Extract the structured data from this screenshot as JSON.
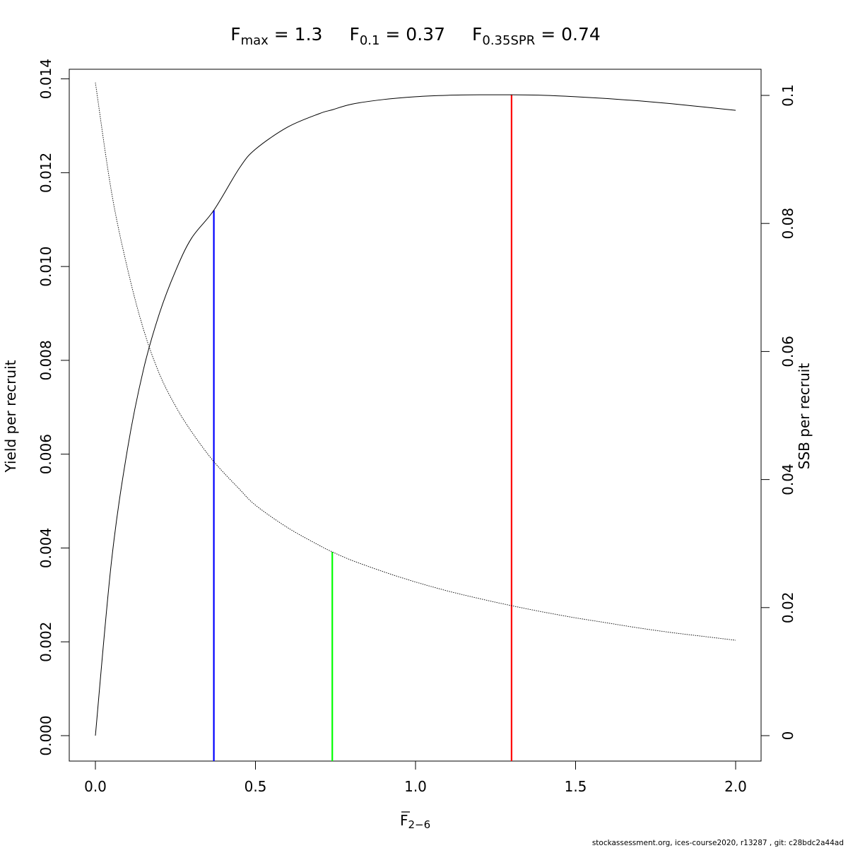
{
  "title": {
    "fmax_sym": "F",
    "fmax_sub": "max",
    "fmax_val": " = 1.3",
    "f01_sym": "F",
    "f01_sub": "0.1",
    "f01_val": " = 0.37",
    "fspr_sym": "F",
    "fspr_sub": "0.35SPR",
    "fspr_val": " = 0.74"
  },
  "xlabel": {
    "main": "F",
    "sub": "2−6"
  },
  "ylabel_left": "Yield per recruit",
  "ylabel_right": "SSB per recruit",
  "footer": "stockassessment.org, ices-course2020, r13287 , git: c28bdc2a44ad",
  "x_ticks": [
    "0.0",
    "0.5",
    "1.0",
    "1.5",
    "2.0"
  ],
  "y_left_ticks": [
    "0.000",
    "0.002",
    "0.004",
    "0.006",
    "0.008",
    "0.010",
    "0.012",
    "0.014"
  ],
  "y_right_ticks": [
    "0",
    "0.02",
    "0.04",
    "0.06",
    "0.08",
    "0.1"
  ],
  "colors": {
    "fmax": "#ff0000",
    "f01": "#0000ff",
    "fspr": "#00ff00",
    "curve": "#000000"
  },
  "chart_data": {
    "type": "line",
    "xlim": [
      0,
      2
    ],
    "ylim_left": [
      0,
      0.014
    ],
    "ylim_right": [
      0,
      0.1
    ],
    "grid": false,
    "x": [
      0.0,
      0.05,
      0.1,
      0.15,
      0.2,
      0.25,
      0.3,
      0.37,
      0.45,
      0.5,
      0.6,
      0.7,
      0.74,
      0.8,
      0.9,
      1.0,
      1.1,
      1.2,
      1.3,
      1.4,
      1.5,
      1.6,
      1.7,
      1.8,
      1.9,
      2.0
    ],
    "series": [
      {
        "axis": "left",
        "style": "solid",
        "values": [
          0.0,
          0.0037,
          0.0061,
          0.0078,
          0.009,
          0.0099,
          0.0106,
          0.0112,
          0.0121,
          0.0125,
          0.01297,
          0.01326,
          0.01334,
          0.01346,
          0.01356,
          0.01362,
          0.01365,
          0.01366,
          0.01366,
          0.01365,
          0.01362,
          0.01358,
          0.01353,
          0.01347,
          0.0134,
          0.01333
        ]
      },
      {
        "axis": "right",
        "style": "dotted",
        "values": [
          0.102,
          0.085,
          0.073,
          0.0635,
          0.0565,
          0.0515,
          0.0475,
          0.0428,
          0.0385,
          0.036,
          0.0325,
          0.0297,
          0.0287,
          0.0274,
          0.0256,
          0.024,
          0.0226,
          0.0214,
          0.0203,
          0.0193,
          0.0184,
          0.0176,
          0.0168,
          0.0161,
          0.0155,
          0.0149
        ]
      }
    ],
    "reference_lines": [
      {
        "x": 0.37,
        "y_top": 0.0112,
        "color": "#0000ff"
      },
      {
        "x": 0.74,
        "y_top": 0.0287,
        "axis": "right",
        "color": "#00ff00"
      },
      {
        "x": 1.3,
        "y_top": 0.01366,
        "color": "#ff0000"
      }
    ]
  }
}
